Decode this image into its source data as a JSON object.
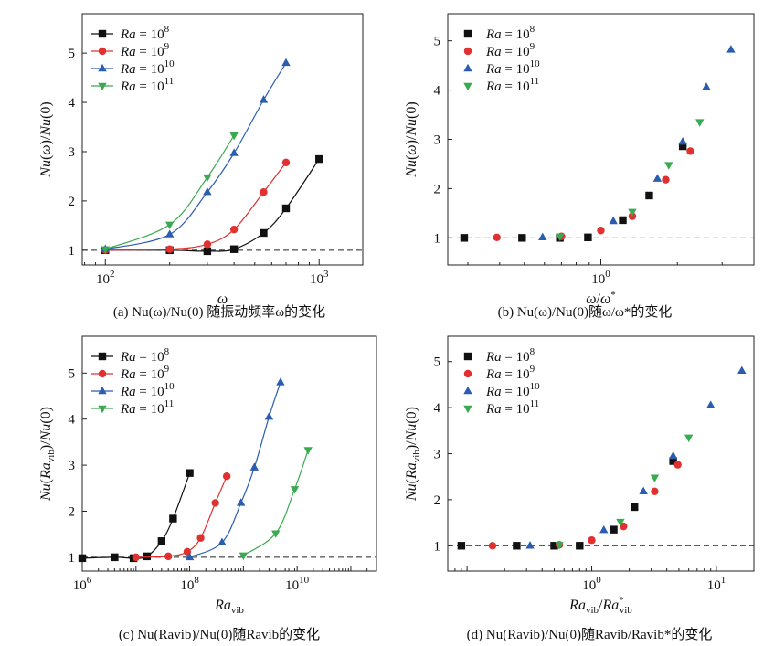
{
  "chart_data": [
    {
      "type": "scatter",
      "panel": "(a)",
      "caption": "(a) Nu(ω)/Nu(0) 随振动频率ω的变化",
      "xlabel": "ω",
      "ylabel": "Nu(ω)/Nu(0)",
      "xscale": "log",
      "xlim": [
        78,
        1600
      ],
      "ylim": [
        0.7,
        5.8
      ],
      "xticks": [
        {
          "v": 100,
          "base": "10",
          "exp": "2"
        },
        {
          "v": 1000,
          "base": "10",
          "exp": "3"
        }
      ],
      "yticks": [
        1,
        2,
        3,
        4,
        5
      ],
      "reference_line": 1,
      "curves": true,
      "legend": "top-left",
      "series": [
        {
          "name": "Ra=10^8",
          "label": "Ra",
          "exp": "8",
          "color": "#111111",
          "marker": "square",
          "x": [
            100,
            200,
            300,
            400,
            550,
            700,
            1000
          ],
          "y": [
            1.0,
            1.0,
            0.98,
            1.02,
            1.35,
            1.85,
            2.85
          ]
        },
        {
          "name": "Ra=10^9",
          "label": "Ra",
          "exp": "9",
          "color": "#e03030",
          "marker": "circle",
          "x": [
            100,
            200,
            300,
            400,
            550,
            700
          ],
          "y": [
            1.0,
            1.02,
            1.12,
            1.42,
            2.18,
            2.78
          ]
        },
        {
          "name": "Ra=10^10",
          "label": "Ra",
          "exp": "10",
          "color": "#2a5db0",
          "marker": "triangle-up",
          "x": [
            100,
            200,
            300,
            400,
            550,
            700
          ],
          "y": [
            1.02,
            1.32,
            2.18,
            2.97,
            4.05,
            4.8
          ]
        },
        {
          "name": "Ra=10^11",
          "label": "Ra",
          "exp": "11",
          "color": "#3aaa50",
          "marker": "triangle-down",
          "x": [
            100,
            200,
            300,
            400
          ],
          "y": [
            1.02,
            1.52,
            2.48,
            3.33
          ]
        }
      ]
    },
    {
      "type": "scatter",
      "panel": "(b)",
      "caption": "(b) Nu(ω)/Nu(0)随ω/ω*的变化",
      "xlabel": "ω/ω*",
      "ylabel": "Nu(ω)/Nu(0)",
      "xscale": "log",
      "xlim": [
        0.25,
        4.0
      ],
      "ylim": [
        0.45,
        5.55
      ],
      "xticks": [
        {
          "v": 1,
          "base": "10",
          "exp": "0"
        }
      ],
      "yticks": [
        1,
        2,
        3,
        4,
        5
      ],
      "reference_line": 1,
      "curves": false,
      "legend": "top-left",
      "series": [
        {
          "name": "Ra=10^8",
          "label": "Ra",
          "exp": "8",
          "color": "#111111",
          "marker": "square",
          "x": [
            0.29,
            0.49,
            0.69,
            0.89,
            1.22,
            1.55,
            2.1
          ],
          "y": [
            1.0,
            1.0,
            1.0,
            1.01,
            1.36,
            1.86,
            2.86
          ]
        },
        {
          "name": "Ra=10^9",
          "label": "Ra",
          "exp": "9",
          "color": "#e03030",
          "marker": "circle",
          "x": [
            0.39,
            0.7,
            1.0,
            1.33,
            1.8,
            2.25
          ],
          "y": [
            1.01,
            1.03,
            1.15,
            1.44,
            2.18,
            2.76
          ]
        },
        {
          "name": "Ra=10^10",
          "label": "Ra",
          "exp": "10",
          "color": "#2a5db0",
          "marker": "triangle-up",
          "x": [
            0.59,
            1.12,
            1.67,
            2.1,
            2.6,
            3.25
          ],
          "y": [
            1.01,
            1.34,
            2.2,
            2.95,
            4.06,
            4.82
          ]
        },
        {
          "name": "Ra=10^11",
          "label": "Ra",
          "exp": "11",
          "color": "#3aaa50",
          "marker": "triangle-down",
          "x": [
            0.69,
            1.33,
            1.85,
            2.45
          ],
          "y": [
            1.03,
            1.53,
            2.48,
            3.35
          ]
        }
      ]
    },
    {
      "type": "scatter",
      "panel": "(c)",
      "caption": "(c) Nu(Ravib)/Nu(0)随Ravib的变化",
      "xlabel": "Ravib",
      "ylabel": "Nu(Ravib)/Nu(0)",
      "xscale": "log",
      "xlim": [
        1000000,
        300000000000
      ],
      "ylim": [
        0.7,
        5.8
      ],
      "xticks": [
        {
          "v": 1000000,
          "base": "10",
          "exp": "6"
        },
        {
          "v": 100000000,
          "base": "10",
          "exp": "8"
        },
        {
          "v": 10000000000,
          "base": "10",
          "exp": "10"
        }
      ],
      "yticks": [
        1,
        2,
        3,
        4,
        5
      ],
      "reference_line": 1,
      "curves": true,
      "legend": "top-left",
      "series": [
        {
          "name": "Ra=10^8",
          "label": "Ra",
          "exp": "8",
          "color": "#111111",
          "marker": "square",
          "x": [
            1000000,
            4000000,
            9000000,
            16000000,
            30000000,
            49000000,
            100000000
          ],
          "y": [
            0.98,
            1.0,
            0.98,
            1.02,
            1.35,
            1.84,
            2.83
          ]
        },
        {
          "name": "Ra=10^9",
          "label": "Ra",
          "exp": "9",
          "color": "#e03030",
          "marker": "circle",
          "x": [
            10000000,
            40000000,
            90000000,
            160000000,
            300000000,
            490000000
          ],
          "y": [
            1.0,
            1.02,
            1.12,
            1.42,
            2.18,
            2.76
          ]
        },
        {
          "name": "Ra=10^10",
          "label": "Ra",
          "exp": "10",
          "color": "#2a5db0",
          "marker": "triangle-up",
          "x": [
            100000000,
            400000000,
            900000000,
            1600000000,
            3000000000,
            4900000000
          ],
          "y": [
            1.0,
            1.32,
            2.18,
            2.95,
            4.05,
            4.8
          ]
        },
        {
          "name": "Ra=10^11",
          "label": "Ra",
          "exp": "11",
          "color": "#3aaa50",
          "marker": "triangle-down",
          "x": [
            1000000000,
            4000000000,
            9000000000,
            16000000000
          ],
          "y": [
            1.04,
            1.52,
            2.48,
            3.33
          ]
        }
      ]
    },
    {
      "type": "scatter",
      "panel": "(d)",
      "caption": "(d) Nu(Ravib)/Nu(0)随Ravib/Ravib*的变化",
      "xlabel": "Ravib/Ravib*",
      "ylabel": "Nu(Ravib)/Nu(0)",
      "xscale": "log",
      "xlim": [
        0.07,
        20.0
      ],
      "ylim": [
        0.45,
        5.55
      ],
      "xticks": [
        {
          "v": 1,
          "base": "10",
          "exp": "0"
        },
        {
          "v": 10,
          "base": "10",
          "exp": "1"
        }
      ],
      "yticks": [
        1,
        2,
        3,
        4,
        5
      ],
      "reference_line": 1,
      "curves": false,
      "legend": "top-left",
      "series": [
        {
          "name": "Ra=10^8",
          "label": "Ra",
          "exp": "8",
          "color": "#111111",
          "marker": "square",
          "x": [
            0.09,
            0.25,
            0.5,
            0.8,
            1.5,
            2.2,
            4.5
          ],
          "y": [
            1.0,
            1.0,
            1.0,
            1.0,
            1.35,
            1.84,
            2.84
          ]
        },
        {
          "name": "Ra=10^9",
          "label": "Ra",
          "exp": "9",
          "color": "#e03030",
          "marker": "circle",
          "x": [
            0.16,
            0.55,
            1.0,
            1.8,
            3.2,
            4.9
          ],
          "y": [
            1.0,
            1.02,
            1.12,
            1.42,
            2.18,
            2.76
          ]
        },
        {
          "name": "Ra=10^10",
          "label": "Ra",
          "exp": "10",
          "color": "#2a5db0",
          "marker": "triangle-up",
          "x": [
            0.32,
            1.25,
            2.6,
            4.5,
            9.0,
            16.0
          ],
          "y": [
            1.0,
            1.34,
            2.18,
            2.95,
            4.05,
            4.8
          ]
        },
        {
          "name": "Ra=10^11",
          "label": "Ra",
          "exp": "11",
          "color": "#3aaa50",
          "marker": "triangle-down",
          "x": [
            0.55,
            1.7,
            3.2,
            6.0
          ],
          "y": [
            1.02,
            1.52,
            2.48,
            3.35
          ]
        }
      ]
    }
  ]
}
